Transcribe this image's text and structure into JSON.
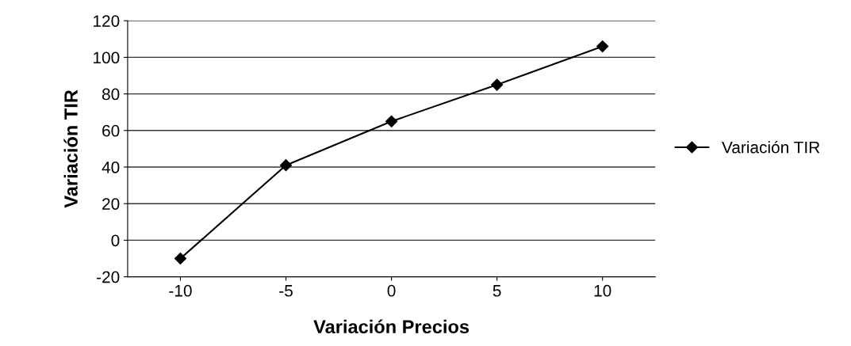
{
  "chart_data": {
    "type": "line",
    "xlabel": "Variación Precios",
    "ylabel": "Variación TIR",
    "categories": [
      "-10",
      "-5",
      "0",
      "5",
      "10"
    ],
    "series": [
      {
        "name": "Variación TIR",
        "color": "#000000",
        "values": [
          -10,
          41,
          65,
          85,
          106
        ]
      }
    ],
    "ylim": [
      -20,
      120
    ],
    "yticks": [
      -20,
      0,
      20,
      40,
      60,
      80,
      100,
      120
    ],
    "grid": "y",
    "legend": "right",
    "marker": "diamond",
    "line_style": "solid"
  }
}
